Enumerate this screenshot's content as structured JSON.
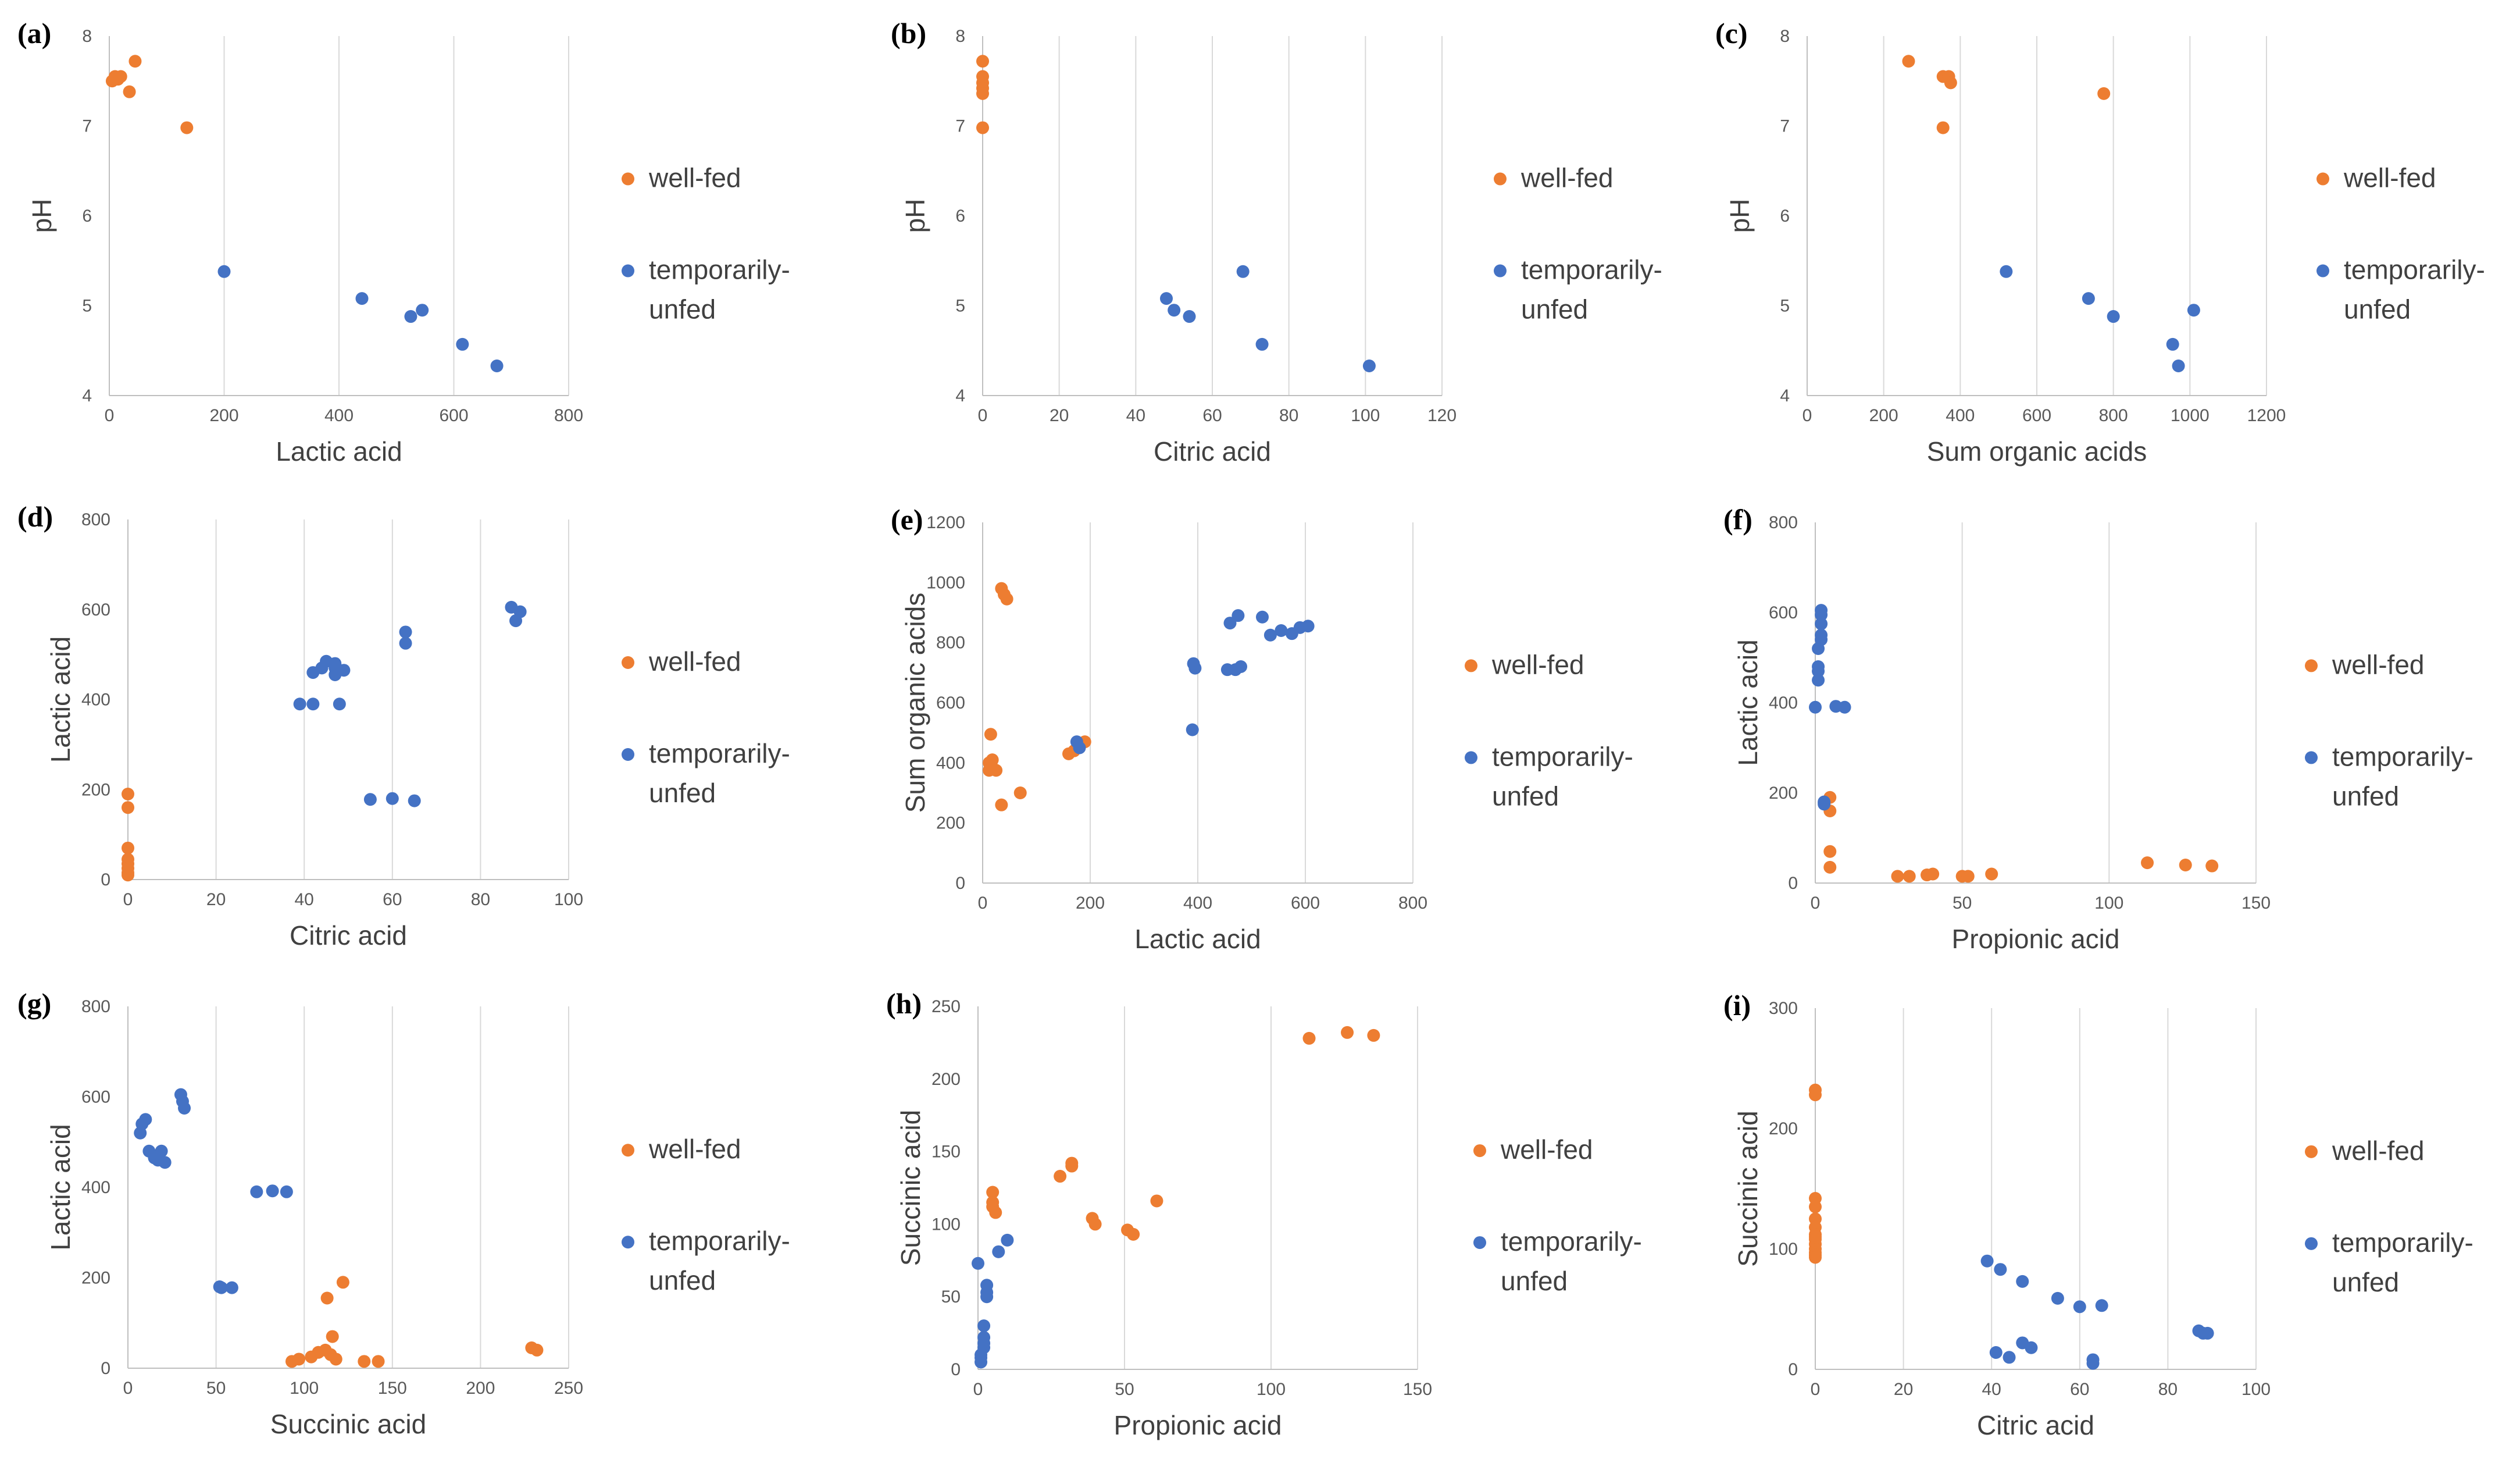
{
  "colors": {
    "well_fed": "#ED7D31",
    "temporarily_unfed": "#4472C4"
  },
  "legend": {
    "well_fed": "well-fed",
    "temporarily_unfed_line1": "temporarily-",
    "temporarily_unfed_line2": "unfed"
  },
  "chart_data": [
    {
      "type": "scatter",
      "panel": "(a)",
      "xlabel": "Lactic acid",
      "ylabel": "pH",
      "xlim": [
        0,
        800
      ],
      "ylim": [
        4,
        8
      ],
      "xticks": [
        "0",
        "200",
        "400",
        "600",
        "800"
      ],
      "yticks": [
        "4",
        "5",
        "6",
        "7",
        "8"
      ],
      "series": [
        {
          "name": "well-fed",
          "x": [
            5,
            10,
            15,
            20,
            35,
            45,
            135
          ],
          "y": [
            7.5,
            7.55,
            7.52,
            7.55,
            7.38,
            7.72,
            6.98
          ]
        },
        {
          "name": "temporarily-unfed",
          "x": [
            200,
            440,
            525,
            545,
            615,
            675
          ],
          "y": [
            5.38,
            5.08,
            4.88,
            4.95,
            4.57,
            4.33
          ]
        }
      ]
    },
    {
      "type": "scatter",
      "panel": "(b)",
      "xlabel": "Citric acid",
      "ylabel": "pH",
      "xlim": [
        0,
        120
      ],
      "ylim": [
        4,
        8
      ],
      "xticks": [
        "0",
        "20",
        "40",
        "60",
        "80",
        "100",
        "120"
      ],
      "yticks": [
        "4",
        "5",
        "6",
        "7",
        "8"
      ],
      "series": [
        {
          "name": "well-fed",
          "x": [
            0,
            0,
            0,
            0,
            0,
            0
          ],
          "y": [
            7.72,
            7.55,
            7.48,
            7.42,
            7.36,
            6.98
          ]
        },
        {
          "name": "temporarily-unfed",
          "x": [
            48,
            50,
            54,
            68,
            73,
            101
          ],
          "y": [
            5.08,
            4.95,
            4.88,
            5.38,
            4.57,
            4.33
          ]
        }
      ]
    },
    {
      "type": "scatter",
      "panel": "(c)",
      "xlabel": "Sum organic acids",
      "ylabel": "pH",
      "xlim": [
        0,
        1200
      ],
      "ylim": [
        4,
        8
      ],
      "xticks": [
        "0",
        "200",
        "400",
        "600",
        "800",
        "1000",
        "1200"
      ],
      "yticks": [
        "4",
        "5",
        "6",
        "7",
        "8"
      ],
      "series": [
        {
          "name": "well-fed",
          "x": [
            265,
            355,
            370,
            375,
            355,
            775
          ],
          "y": [
            7.72,
            7.55,
            7.55,
            7.48,
            6.98,
            7.36
          ]
        },
        {
          "name": "temporarily-unfed",
          "x": [
            520,
            735,
            800,
            1010,
            955,
            970
          ],
          "y": [
            5.38,
            5.08,
            4.88,
            4.95,
            4.57,
            4.33
          ]
        }
      ]
    },
    {
      "type": "scatter",
      "panel": "(d)",
      "xlabel": "Citric acid",
      "ylabel": "Lactic acid",
      "xlim": [
        0,
        100
      ],
      "ylim": [
        0,
        800
      ],
      "xticks": [
        "0",
        "20",
        "40",
        "60",
        "80",
        "100"
      ],
      "yticks": [
        "0",
        "200",
        "400",
        "600",
        "800"
      ],
      "series": [
        {
          "name": "well-fed",
          "x": [
            0,
            0,
            0,
            0,
            0,
            0,
            0,
            0
          ],
          "y": [
            190,
            160,
            70,
            45,
            35,
            25,
            15,
            10
          ]
        },
        {
          "name": "temporarily-unfed",
          "x": [
            39,
            42,
            42,
            44,
            45,
            47,
            47,
            48,
            49,
            47,
            55,
            60,
            63,
            63,
            65,
            87,
            88,
            89
          ],
          "y": [
            390,
            390,
            460,
            470,
            485,
            480,
            455,
            390,
            465,
            470,
            178,
            180,
            550,
            525,
            175,
            605,
            575,
            595
          ]
        }
      ]
    },
    {
      "type": "scatter",
      "panel": "(e)",
      "xlabel": "Lactic acid",
      "ylabel": "Sum organic acids",
      "xlim": [
        0,
        800
      ],
      "ylim": [
        0,
        1200
      ],
      "xticks": [
        "0",
        "200",
        "400",
        "600",
        "800"
      ],
      "yticks": [
        "0",
        "200",
        "400",
        "600",
        "800",
        "1000",
        "1200"
      ],
      "series": [
        {
          "name": "well-fed",
          "x": [
            15,
            18,
            15,
            20,
            25,
            12,
            12,
            35,
            40,
            45,
            35,
            70,
            160,
            170,
            190
          ],
          "y": [
            495,
            410,
            390,
            380,
            375,
            400,
            375,
            980,
            960,
            945,
            260,
            300,
            430,
            440,
            470
          ]
        },
        {
          "name": "temporarily-unfed",
          "x": [
            175,
            180,
            390,
            392,
            395,
            455,
            460,
            470,
            475,
            480,
            520,
            535,
            555,
            575,
            590,
            605
          ],
          "y": [
            470,
            450,
            510,
            730,
            715,
            710,
            865,
            710,
            890,
            720,
            885,
            825,
            840,
            830,
            850,
            855
          ]
        }
      ]
    },
    {
      "type": "scatter",
      "panel": "(f)",
      "xlabel": "Propionic acid",
      "ylabel": "Lactic acid",
      "xlim": [
        0,
        150
      ],
      "ylim": [
        0,
        800
      ],
      "xticks": [
        "0",
        "50",
        "100",
        "150"
      ],
      "yticks": [
        "0",
        "200",
        "400",
        "600",
        "800"
      ],
      "series": [
        {
          "name": "well-fed",
          "x": [
            5,
            5,
            5,
            5,
            28,
            32,
            38,
            40,
            50,
            52,
            60,
            113,
            126,
            135
          ],
          "y": [
            190,
            160,
            70,
            35,
            15,
            15,
            18,
            20,
            15,
            15,
            20,
            45,
            40,
            38
          ]
        },
        {
          "name": "temporarily-unfed",
          "x": [
            0,
            1,
            1,
            1,
            1,
            2,
            2,
            2,
            2,
            2,
            3,
            3,
            3,
            7,
            10
          ],
          "y": [
            390,
            450,
            470,
            480,
            520,
            540,
            550,
            575,
            595,
            605,
            178,
            180,
            175,
            392,
            390
          ]
        }
      ]
    },
    {
      "type": "scatter",
      "panel": "(g)",
      "xlabel": "Succinic acid",
      "ylabel": "Lactic acid",
      "xlim": [
        0,
        250
      ],
      "ylim": [
        0,
        800
      ],
      "xticks": [
        "0",
        "50",
        "100",
        "150",
        "200",
        "250"
      ],
      "yticks": [
        "0",
        "200",
        "400",
        "600",
        "800"
      ],
      "series": [
        {
          "name": "well-fed",
          "x": [
            93,
            97,
            104,
            108,
            112,
            115,
            118,
            116,
            113,
            122,
            134,
            142,
            229,
            232
          ],
          "y": [
            15,
            20,
            25,
            35,
            40,
            30,
            20,
            70,
            155,
            190,
            15,
            15,
            45,
            40
          ]
        },
        {
          "name": "temporarily-unfed",
          "x": [
            7,
            8,
            10,
            12,
            15,
            17,
            19,
            21,
            30,
            31,
            32,
            52,
            53,
            59,
            73,
            82,
            90
          ],
          "y": [
            520,
            540,
            550,
            480,
            465,
            460,
            480,
            455,
            605,
            590,
            575,
            180,
            178,
            178,
            390,
            392,
            390
          ]
        }
      ]
    },
    {
      "type": "scatter",
      "panel": "(h)",
      "xlabel": "Propionic acid",
      "ylabel": "Succinic acid",
      "xlim": [
        0,
        150
      ],
      "ylim": [
        0,
        250
      ],
      "xticks": [
        "0",
        "50",
        "100",
        "150"
      ],
      "yticks": [
        "0",
        "50",
        "100",
        "150",
        "200",
        "250"
      ],
      "series": [
        {
          "name": "well-fed",
          "x": [
            5,
            5,
            5,
            6,
            28,
            32,
            32,
            39,
            40,
            51,
            53,
            61,
            113,
            126,
            135
          ],
          "y": [
            122,
            115,
            112,
            108,
            133,
            142,
            140,
            104,
            100,
            96,
            93,
            116,
            228,
            232,
            230
          ]
        },
        {
          "name": "temporarily-unfed",
          "x": [
            0,
            1,
            1,
            1,
            2,
            2,
            2,
            2,
            3,
            3,
            3,
            7,
            10
          ],
          "y": [
            73,
            5,
            8,
            10,
            15,
            18,
            22,
            30,
            58,
            53,
            50,
            81,
            89
          ]
        }
      ]
    },
    {
      "type": "scatter",
      "panel": "(i)",
      "xlabel": "Citric acid",
      "ylabel": "Succinic acid",
      "xlim": [
        0,
        100
      ],
      "ylim": [
        0,
        300
      ],
      "xticks": [
        "0",
        "20",
        "40",
        "60",
        "80",
        "100"
      ],
      "yticks": [
        "0",
        "100",
        "200",
        "300"
      ],
      "series": [
        {
          "name": "well-fed",
          "x": [
            0,
            0,
            0,
            0,
            0,
            0,
            0,
            0,
            0,
            0,
            0,
            0,
            0,
            0
          ],
          "y": [
            232,
            228,
            142,
            135,
            125,
            118,
            112,
            108,
            104,
            100,
            97,
            95,
            93,
            110
          ]
        },
        {
          "name": "temporarily-unfed",
          "x": [
            39,
            41,
            42,
            44,
            47,
            47,
            49,
            55,
            60,
            63,
            63,
            65,
            87,
            88,
            89
          ],
          "y": [
            90,
            14,
            83,
            10,
            73,
            22,
            18,
            59,
            52,
            8,
            5,
            53,
            32,
            30,
            30
          ]
        }
      ]
    }
  ]
}
